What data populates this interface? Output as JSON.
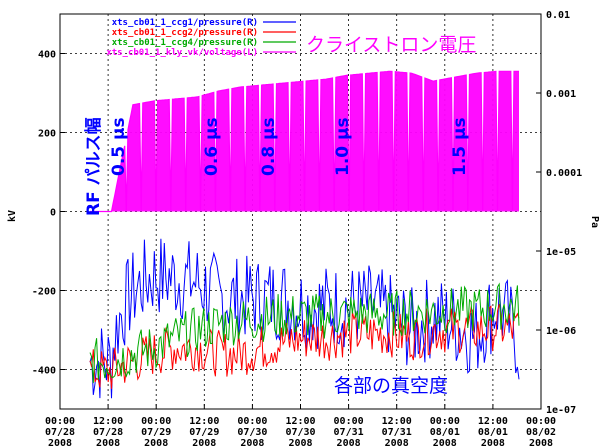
{
  "chart_data": {
    "type": "line",
    "title": "",
    "ylabel_left": "kV",
    "ylabel_right": "Pa",
    "ylim_left": [
      -500,
      500
    ],
    "yticks_left": [
      "400",
      "200",
      "0",
      "-200",
      "-400"
    ],
    "ylim_right_log": [
      1e-07,
      0.01
    ],
    "yticks_right": [
      "0.01",
      "0.001",
      "0.0001",
      "1e-05",
      "1e-06",
      "1e-07"
    ],
    "xticks": [
      {
        "time": "00:00",
        "date": "07/28",
        "year": "2008"
      },
      {
        "time": "12:00",
        "date": "07/28",
        "year": "2008"
      },
      {
        "time": "00:00",
        "date": "07/29",
        "year": "2008"
      },
      {
        "time": "12:00",
        "date": "07/29",
        "year": "2008"
      },
      {
        "time": "00:00",
        "date": "07/30",
        "year": "2008"
      },
      {
        "time": "12:00",
        "date": "07/30",
        "year": "2008"
      },
      {
        "time": "00:00",
        "date": "07/31",
        "year": "2008"
      },
      {
        "time": "12:00",
        "date": "07/31",
        "year": "2008"
      },
      {
        "time": "00:00",
        "date": "08/01",
        "year": "2008"
      },
      {
        "time": "12:00",
        "date": "08/01",
        "year": "2008"
      },
      {
        "time": "00:00",
        "date": "08/02",
        "year": "2008"
      }
    ],
    "grid": true,
    "legend_position": "top-left",
    "series": [
      {
        "name": "xts_cb01_1_ccg1/pressure(R)",
        "color": "#0000ff",
        "axis": "right",
        "values": [
          4e-07,
          4e-07,
          3e-06,
          5e-06,
          4.5e-06,
          4e-06,
          2.5e-06,
          2.5e-06,
          2.5e-06,
          2.5e-06,
          2e-06,
          2e-06,
          2e-06,
          2e-06,
          1.5e-06,
          1e-06,
          1.5e-06,
          1.2e-06,
          8e-07,
          2e-06,
          6e-07
        ]
      },
      {
        "name": "xts_cb01_1_ccg2/pressure(R)",
        "color": "#ff0000",
        "axis": "right",
        "values": [
          3e-07,
          3e-07,
          4e-07,
          5e-07,
          6e-07,
          6e-07,
          5e-07,
          5e-07,
          6e-07,
          7e-07,
          8e-07,
          8e-07,
          9e-07,
          9e-07,
          9e-07,
          8e-07,
          1e-06,
          1e-06,
          1e-06,
          1.1e-06,
          1e-06
        ]
      },
      {
        "name": "xts_cb01_1_ccg4/pressure(R)",
        "color": "#00aa00",
        "axis": "right",
        "values": [
          4e-07,
          4e-07,
          5e-07,
          6e-07,
          8e-07,
          1e-06,
          1.2e-06,
          1.3e-06,
          1.4e-06,
          1.5e-06,
          1.5e-06,
          1.5e-06,
          1.6e-06,
          1.6e-06,
          1.6e-06,
          1.7e-06,
          1.7e-06,
          1.8e-06,
          1.8e-06,
          2e-06,
          2e-06
        ]
      },
      {
        "name": "xts_cb01_1_kly_vk/voltage(L)",
        "color": "#ff00ff",
        "axis": "left",
        "values": [
          0,
          0,
          270,
          280,
          285,
          290,
          305,
          315,
          320,
          325,
          330,
          335,
          345,
          350,
          355,
          350,
          330,
          340,
          350,
          355,
          355
        ]
      }
    ],
    "annotations": [
      {
        "text": "クライストロン電圧",
        "color": "#ff00ff"
      },
      {
        "text": "RF パルス幅",
        "color": "#0000ff"
      },
      {
        "text": "0.5 μs",
        "color": "#0000ff"
      },
      {
        "text": "0.6 μs",
        "color": "#0000ff"
      },
      {
        "text": "0.8 μs",
        "color": "#0000ff"
      },
      {
        "text": "1.0 μs",
        "color": "#0000ff"
      },
      {
        "text": "1.5 μs",
        "color": "#0000ff"
      },
      {
        "text": "各部の真空度",
        "color": "#0000ff"
      }
    ]
  }
}
